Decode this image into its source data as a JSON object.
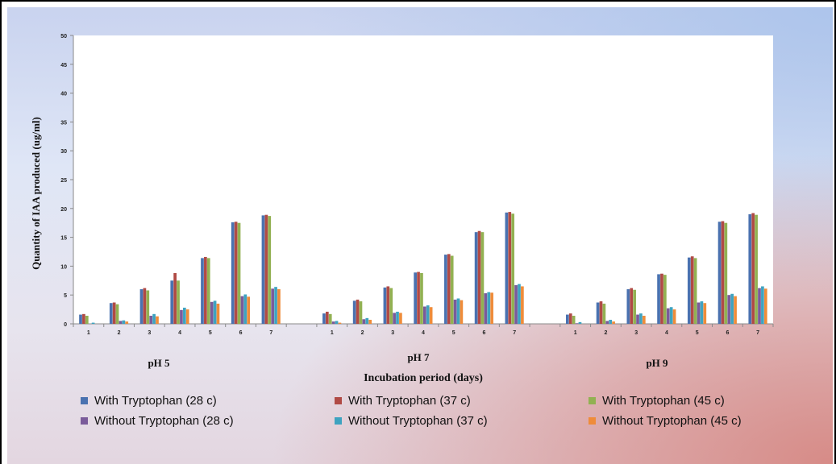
{
  "chart_data": {
    "type": "bar",
    "title": "",
    "ylabel": "Quantity of IAA produced (ug/ml)",
    "xlabel": "Incubation period (days)",
    "ylim": [
      0,
      50
    ],
    "yticks": [
      0,
      5,
      10,
      15,
      20,
      25,
      30,
      35,
      40,
      45,
      50
    ],
    "grid": false,
    "legend_position": "bottom",
    "groups": [
      {
        "label": "pH 5",
        "categories": [
          "1",
          "2",
          "3",
          "4",
          "5",
          "6",
          "7"
        ],
        "series": [
          {
            "name": "With Tryptophan (28 c)",
            "values": [
              1.6,
              3.6,
              6.0,
              7.5,
              11.4,
              17.6,
              18.8
            ]
          },
          {
            "name": "With Tryptophan (37 c)",
            "values": [
              1.7,
              3.7,
              6.2,
              8.8,
              11.6,
              17.7,
              18.9
            ]
          },
          {
            "name": "With Tryptophan (45 c)",
            "values": [
              1.4,
              3.4,
              5.8,
              7.5,
              11.4,
              17.5,
              18.7
            ]
          },
          {
            "name": "Without Tryptophan (28 c)",
            "values": [
              0.0,
              0.5,
              1.4,
              2.4,
              3.8,
              4.8,
              6.1
            ]
          },
          {
            "name": "Without Tryptophan (37 c)",
            "values": [
              0.2,
              0.6,
              1.7,
              2.8,
              4.0,
              5.1,
              6.4
            ]
          },
          {
            "name": "Without Tryptophan (45 c)",
            "values": [
              0.0,
              0.4,
              1.3,
              2.5,
              3.5,
              4.7,
              6.0
            ]
          }
        ]
      },
      {
        "label": "pH 7",
        "categories": [
          "1",
          "2",
          "3",
          "4",
          "5",
          "6",
          "7"
        ],
        "series": [
          {
            "name": "With Tryptophan (28 c)",
            "values": [
              1.8,
              4.0,
              6.3,
              8.9,
              12.0,
              15.9,
              19.3
            ]
          },
          {
            "name": "With Tryptophan (37 c)",
            "values": [
              2.1,
              4.2,
              6.5,
              9.0,
              12.1,
              16.1,
              19.4
            ]
          },
          {
            "name": "With Tryptophan (45 c)",
            "values": [
              1.7,
              3.9,
              6.2,
              8.8,
              11.8,
              15.9,
              19.1
            ]
          },
          {
            "name": "Without Tryptophan (28 c)",
            "values": [
              0.4,
              0.8,
              1.9,
              3.0,
              4.2,
              5.3,
              6.7
            ]
          },
          {
            "name": "Without Tryptophan (37 c)",
            "values": [
              0.5,
              1.0,
              2.1,
              3.2,
              4.4,
              5.5,
              6.9
            ]
          },
          {
            "name": "Without Tryptophan (45 c)",
            "values": [
              0.2,
              0.7,
              1.9,
              2.9,
              4.1,
              5.4,
              6.5
            ]
          }
        ]
      },
      {
        "label": "pH 9",
        "categories": [
          "1",
          "2",
          "3",
          "4",
          "5",
          "6",
          "7"
        ],
        "series": [
          {
            "name": "With Tryptophan (28 c)",
            "values": [
              1.6,
              3.7,
              6.0,
              8.6,
              11.5,
              17.7,
              19.0
            ]
          },
          {
            "name": "With Tryptophan (37 c)",
            "values": [
              1.8,
              3.9,
              6.2,
              8.7,
              11.7,
              17.8,
              19.2
            ]
          },
          {
            "name": "With Tryptophan (45 c)",
            "values": [
              1.4,
              3.5,
              5.9,
              8.5,
              11.4,
              17.5,
              18.9
            ]
          },
          {
            "name": "Without Tryptophan (28 c)",
            "values": [
              0.1,
              0.5,
              1.6,
              2.7,
              3.7,
              5.0,
              6.2
            ]
          },
          {
            "name": "Without Tryptophan (37 c)",
            "values": [
              0.3,
              0.7,
              1.8,
              2.9,
              3.9,
              5.2,
              6.5
            ]
          },
          {
            "name": "Without Tryptophan (45 c)",
            "values": [
              0.0,
              0.4,
              1.4,
              2.5,
              3.6,
              4.8,
              6.1
            ]
          }
        ]
      }
    ],
    "series_colors": [
      "#4a72b0",
      "#b04a45",
      "#92b152",
      "#7a5b9a",
      "#3ea3c0",
      "#ef8c3a"
    ]
  },
  "legend": [
    {
      "label": "With Tryptophan (28 c)",
      "color": "#4a72b0"
    },
    {
      "label": "With Tryptophan (37 c)",
      "color": "#b04a45"
    },
    {
      "label": "With Tryptophan (45 c)",
      "color": "#92b152"
    },
    {
      "label": "Without Tryptophan (28 c)",
      "color": "#7a5b9a"
    },
    {
      "label": "Without Tryptophan (37 c)",
      "color": "#3ea3c0"
    },
    {
      "label": "Without Tryptophan (45 c)",
      "color": "#ef8c3a"
    }
  ]
}
